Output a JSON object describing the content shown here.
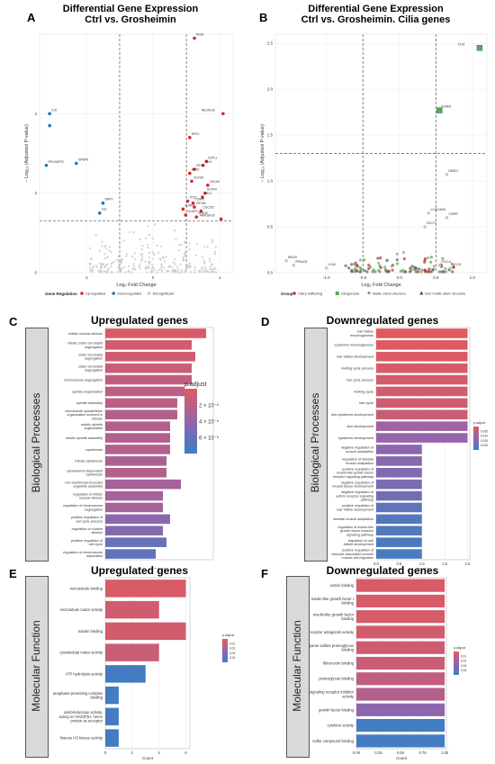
{
  "panels": {
    "A": {
      "label": "A",
      "title_line1": "Differential Gene Expression",
      "title_line2": "Ctrl vs. Grosheimin"
    },
    "B": {
      "label": "B",
      "title_line1": "Differential Gene Expression",
      "title_line2": "Ctrl vs. Grosheimin. Cilia genes"
    },
    "C": {
      "label": "C",
      "title": "Upregulated genes",
      "side": "Biological Processes",
      "xlabel": "Count",
      "legend_title": "p.adjust",
      "legend_ticks": [
        "2 × 10⁻⁶",
        "4 × 10⁻⁶",
        "6 × 10⁻⁶"
      ]
    },
    "D": {
      "label": "D",
      "title": "Downregulated genes",
      "side": "Biological Processes",
      "xlabel": "Count",
      "legend_title": "p.adjust",
      "legend_ticks": [
        "0.005",
        "0.010",
        "0.015",
        "0.020"
      ]
    },
    "E": {
      "label": "E",
      "title": "Upregulated genes",
      "side": "Molecular Function",
      "xlabel": "Count",
      "legend_title": "p.adjust",
      "legend_ticks": [
        "0.01",
        "0.02",
        "0.03",
        "0.04"
      ]
    },
    "F": {
      "label": "F",
      "title": "Downregulated genes",
      "side": "Molecular  Function",
      "xlabel": "Count",
      "legend_title": "p.adjust",
      "legend_ticks": [
        "0.01",
        "0.02",
        "0.03",
        "0.04"
      ]
    }
  },
  "legend_A": {
    "title": "Gene Regulation",
    "items": [
      "Up-regulated",
      "Down-regulated",
      "Not significant"
    ]
  },
  "legend_B": {
    "title": "Group",
    "items": [
      "Cilary trafficking",
      "Ciliogenesis",
      "Motile cilium structure",
      "Non-motile cilium structure"
    ]
  },
  "colors": {
    "up": "#d62728",
    "down": "#1f77b4",
    "ns": "#c8c8c8",
    "green": "#4caf50",
    "bar_high": "#e05a5f",
    "bar_low": "#3a7fc4"
  },
  "chart_data": [
    {
      "id": "A",
      "type": "scatter",
      "xlabel": "Log₂ Fold Change",
      "ylabel": "− Log₁₀ (Adjusted P-value)",
      "xlim": [
        -1.7,
        1.2
      ],
      "ylim": [
        0,
        6
      ],
      "xticks": [
        "-1",
        "0",
        "1"
      ],
      "yticks": [
        "0",
        "2",
        "4"
      ],
      "thresholds": {
        "x": [
          -0.5,
          0.5
        ],
        "y": 1.3
      },
      "points": [
        {
          "x": 0.62,
          "y": 5.9,
          "label": "RGS1",
          "g": "up"
        },
        {
          "x": 1.05,
          "y": 4.0,
          "label": "NEURL1B",
          "g": "up"
        },
        {
          "x": 0.55,
          "y": 3.4,
          "label": "NPSC",
          "g": "up"
        },
        {
          "x": 0.8,
          "y": 2.8,
          "label": "ESPL1",
          "g": "up"
        },
        {
          "x": 0.75,
          "y": 2.7,
          "label": "PLK1",
          "g": "up"
        },
        {
          "x": 0.62,
          "y": 2.6,
          "label": "KIF4A",
          "g": "up"
        },
        {
          "x": 0.55,
          "y": 2.5,
          "label": "KIF15",
          "g": "up"
        },
        {
          "x": 0.58,
          "y": 2.3,
          "label": "CDCA8",
          "g": "up"
        },
        {
          "x": 0.82,
          "y": 2.2,
          "label": "CDCA5",
          "g": "up"
        },
        {
          "x": 0.78,
          "y": 2.0,
          "label": "NCAPH",
          "g": "up"
        },
        {
          "x": 0.74,
          "y": 1.9,
          "label": "KIF11",
          "g": "up"
        },
        {
          "x": 0.52,
          "y": 1.8,
          "label": "TPX2",
          "g": "up"
        },
        {
          "x": 0.6,
          "y": 1.75,
          "label": "CENPE",
          "g": "up"
        },
        {
          "x": 0.45,
          "y": 1.6,
          "label": "AURKA",
          "g": "up"
        },
        {
          "x": 0.62,
          "y": 1.65,
          "label": "KIF18A",
          "g": "up"
        },
        {
          "x": 0.72,
          "y": 1.55,
          "label": "CDC25C",
          "g": "up"
        },
        {
          "x": 0.49,
          "y": 1.45,
          "label": "NCAPG",
          "g": "up"
        },
        {
          "x": 0.65,
          "y": 1.4,
          "label": "SPAG5",
          "g": "up"
        },
        {
          "x": 1.02,
          "y": 1.35,
          "label": "ARHGEF39",
          "g": "up"
        },
        {
          "x": -1.55,
          "y": 4.0,
          "label": "IL20",
          "g": "down"
        },
        {
          "x": -1.55,
          "y": 3.7,
          "label": "",
          "g": "down"
        },
        {
          "x": -1.6,
          "y": 2.7,
          "label": "RPL10AP20",
          "g": "down"
        },
        {
          "x": -1.15,
          "y": 2.75,
          "label": "IGFBP5",
          "g": "down"
        },
        {
          "x": -0.75,
          "y": 1.75,
          "label": "SMPX",
          "g": "down"
        },
        {
          "x": -0.8,
          "y": 1.5,
          "label": "FST",
          "g": "down"
        }
      ]
    },
    {
      "id": "B",
      "type": "scatter",
      "xlabel": "Log₂ Fold Change",
      "ylabel": "− Log₁₀ (Adjusted P-value)",
      "xlim": [
        -1.7,
        1.2
      ],
      "ylim": [
        0,
        2.6
      ],
      "xticks": [
        "-1.0",
        "-0.5",
        "0.0",
        "0.5",
        "1.0"
      ],
      "yticks": [
        "0.0",
        "0.5",
        "1.0",
        "1.5",
        "2.0",
        "2.5"
      ],
      "thresholds": {
        "x": [
          -0.5,
          0.5
        ],
        "y": 1.3
      },
      "points": [
        {
          "x": 1.1,
          "y": 2.45,
          "label": "PLK1",
          "g": "green"
        },
        {
          "x": 0.55,
          "y": 1.77,
          "label": "AURKA",
          "g": "green"
        },
        {
          "x": 0.65,
          "y": 1.07,
          "label": "NEDD1",
          "g": "ns"
        },
        {
          "x": 0.4,
          "y": 0.65,
          "label": "CCNO/ANG",
          "g": "ns"
        },
        {
          "x": 0.65,
          "y": 0.6,
          "label": "CENPF",
          "g": "ns"
        },
        {
          "x": 0.35,
          "y": 0.5,
          "label": "KDCT3",
          "g": "ns"
        },
        {
          "x": -1.55,
          "y": 0.13,
          "label": "BBS10",
          "g": "ns"
        },
        {
          "x": -1.45,
          "y": 0.08,
          "label": "PRKACB",
          "g": "ns"
        },
        {
          "x": -1.0,
          "y": 0.05,
          "label": "LCA5",
          "g": "ns"
        },
        {
          "x": 0.55,
          "y": 0.08,
          "label": "PDC1A",
          "g": "ns"
        },
        {
          "x": 0.7,
          "y": 0.05,
          "label": "HYLS1",
          "g": "ns"
        }
      ]
    },
    {
      "id": "C",
      "type": "bar",
      "orientation": "horizontal",
      "xlabel": "Count",
      "legend": "p.adjust",
      "categories": [
        "mitotic nuclear division",
        "mitotic sister chromatid segregation",
        "sister chromatid segregation",
        "sister chromatid segregation",
        "chromosome segregation",
        "spindle organization",
        "spindle assembly",
        "microtubule cytoskeleton organization involved in mitosis",
        "mitotic spindle organization",
        "mitotic spindle assembly",
        "cytokinesis",
        "mitotic cytokinesis",
        "cytoskeleton-dependent cytokinesis",
        "non-membrane-bounded organelle assembly",
        "regulation of mitotic nuclear division",
        "regulation of chromosome segregation",
        "positive regulation of cell cycle process",
        "regulation of nuclear division",
        "positive regulation of cell cycle",
        "regulation of chromosome separation"
      ],
      "values": [
        14,
        12,
        12.5,
        12,
        12,
        11,
        10,
        10,
        9,
        9,
        9,
        8.5,
        8.5,
        10.5,
        8,
        8,
        9,
        8,
        8.5,
        7
      ],
      "colors": [
        0.05,
        0.1,
        0.12,
        0.15,
        0.2,
        0.25,
        0.25,
        0.3,
        0.3,
        0.32,
        0.3,
        0.35,
        0.3,
        0.4,
        0.4,
        0.4,
        0.55,
        0.6,
        0.75,
        0.8
      ]
    },
    {
      "id": "D",
      "type": "bar",
      "orientation": "horizontal",
      "xlabel": "Count",
      "legend": "p.adjust",
      "xticks": [
        "0.0",
        "0.5",
        "1.0",
        "1.5",
        "2.0"
      ],
      "categories": [
        "hair follicle morphogenesis",
        "epidermis morphogenesis",
        "hair follicle development",
        "molting cycle process",
        "hair cycle process",
        "molting cycle",
        "hair cycle",
        "skin epidermis development",
        "skin development",
        "epidermis development",
        "negative regulation of muscle adaptation",
        "regulation of skeletal muscle adaptation",
        "positive regulation of insulin-like growth factor receptor signaling pathway",
        "negative regulation of muscle tissue development",
        "negative regulation of activin receptor signaling pathway",
        "positive regulation of hair follicle development",
        "skeletal muscle adaptation",
        "regulation of insulin-like growth factor receptor signaling pathway",
        "regulation of hair follicle development",
        "positive regulation of vascular associated smooth muscle cell migration"
      ],
      "values": [
        2,
        2,
        2,
        2,
        2,
        2,
        2,
        2,
        2,
        2,
        1,
        1,
        1,
        1,
        1,
        1,
        1,
        1,
        1,
        1
      ],
      "colors": [
        0.0,
        0.02,
        0.04,
        0.06,
        0.08,
        0.1,
        0.12,
        0.15,
        0.45,
        0.5,
        0.55,
        0.6,
        0.62,
        0.65,
        0.7,
        0.8,
        0.85,
        0.88,
        0.9,
        0.92
      ]
    },
    {
      "id": "E",
      "type": "bar",
      "orientation": "horizontal",
      "xlabel": "Count",
      "legend": "p.adjust",
      "xticks": [
        "0",
        "2",
        "4",
        "6"
      ],
      "categories": [
        "microtubule binding",
        "microtubule motor activity",
        "tubulin binding",
        "cytoskeletal motor activity",
        "ATP hydrolysis activity",
        "anaphase-promoting complex binding",
        "oxidoreductase activity, acting on NAD(P)H, heme protein as acceptor",
        "histone H3 kinase activity"
      ],
      "values": [
        6,
        4,
        6,
        4,
        3,
        1,
        1,
        1
      ],
      "colors": [
        0.05,
        0.1,
        0.1,
        0.15,
        0.95,
        0.95,
        0.95,
        0.95
      ]
    },
    {
      "id": "F",
      "type": "bar",
      "orientation": "horizontal",
      "xlabel": "Count",
      "legend": "p.adjust",
      "xticks": [
        "0.00",
        "0.25",
        "0.50",
        "0.75",
        "1.00"
      ],
      "categories": [
        "activin binding",
        "insulin-like growth factor I binding",
        "insulin-like growth factor binding",
        "receptor antagonist activity",
        "heparan sulfate proteoglycan binding",
        "fibronectin binding",
        "proteoglycan binding",
        "signaling receptor inhibitor activity",
        "growth factor binding",
        "cytokine activity",
        "sulfur compound binding"
      ],
      "values": [
        1,
        1,
        1,
        1,
        1,
        1,
        1,
        1,
        1,
        1,
        1
      ],
      "colors": [
        0.05,
        0.06,
        0.08,
        0.1,
        0.12,
        0.15,
        0.2,
        0.3,
        0.55,
        0.95,
        0.95
      ]
    }
  ]
}
